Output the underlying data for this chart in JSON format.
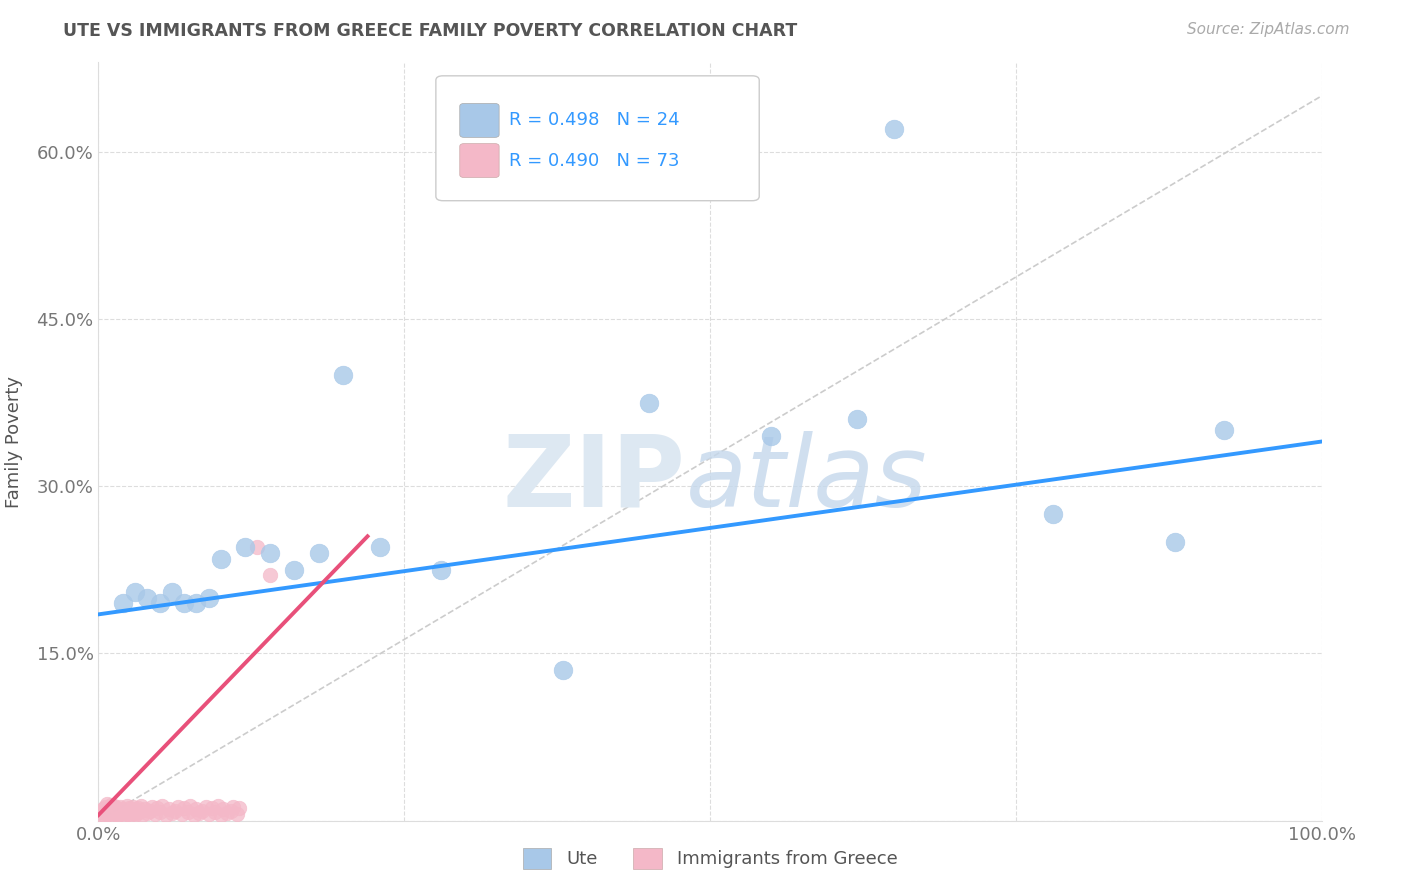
{
  "title": "UTE VS IMMIGRANTS FROM GREECE FAMILY POVERTY CORRELATION CHART",
  "source": "Source: ZipAtlas.com",
  "ylabel": "Family Poverty",
  "xlim": [
    0,
    1.0
  ],
  "ylim": [
    0,
    0.68
  ],
  "xticks": [
    0.0,
    0.25,
    0.5,
    0.75,
    1.0
  ],
  "xtick_labels": [
    "0.0%",
    "",
    "",
    "",
    "100.0%"
  ],
  "yticks": [
    0.0,
    0.15,
    0.3,
    0.45,
    0.6
  ],
  "ytick_labels": [
    "",
    "15.0%",
    "30.0%",
    "45.0%",
    "60.0%"
  ],
  "ute_R": "R = 0.498",
  "ute_N": "N = 24",
  "greece_R": "R = 0.490",
  "greece_N": "N = 73",
  "ute_color": "#a8c8e8",
  "greece_color": "#f4b8c8",
  "ute_line_color": "#3399ff",
  "greece_line_color": "#e8507a",
  "diagonal_color": "#cccccc",
  "background_color": "#ffffff",
  "ute_points_x": [
    0.02,
    0.03,
    0.04,
    0.05,
    0.06,
    0.07,
    0.08,
    0.09,
    0.1,
    0.12,
    0.14,
    0.16,
    0.18,
    0.2,
    0.23,
    0.28,
    0.38,
    0.45,
    0.55,
    0.62,
    0.65,
    0.78,
    0.88,
    0.92
  ],
  "ute_points_y": [
    0.195,
    0.205,
    0.2,
    0.195,
    0.205,
    0.195,
    0.195,
    0.2,
    0.235,
    0.245,
    0.24,
    0.225,
    0.24,
    0.4,
    0.245,
    0.225,
    0.135,
    0.375,
    0.345,
    0.36,
    0.62,
    0.275,
    0.25,
    0.35
  ],
  "greece_points_x": [
    0.002,
    0.003,
    0.004,
    0.005,
    0.005,
    0.006,
    0.007,
    0.007,
    0.008,
    0.009,
    0.01,
    0.01,
    0.011,
    0.012,
    0.013,
    0.013,
    0.014,
    0.015,
    0.016,
    0.017,
    0.018,
    0.019,
    0.02,
    0.021,
    0.022,
    0.023,
    0.024,
    0.025,
    0.026,
    0.027,
    0.028,
    0.029,
    0.03,
    0.031,
    0.032,
    0.033,
    0.035,
    0.036,
    0.038,
    0.04,
    0.042,
    0.044,
    0.046,
    0.048,
    0.05,
    0.052,
    0.055,
    0.058,
    0.06,
    0.063,
    0.065,
    0.068,
    0.07,
    0.073,
    0.075,
    0.078,
    0.08,
    0.082,
    0.085,
    0.088,
    0.09,
    0.093,
    0.095,
    0.098,
    0.1,
    0.102,
    0.105,
    0.108,
    0.11,
    0.113,
    0.115,
    0.13,
    0.14
  ],
  "greece_points_y": [
    0.005,
    0.008,
    0.01,
    0.004,
    0.012,
    0.007,
    0.009,
    0.015,
    0.006,
    0.011,
    0.008,
    0.014,
    0.005,
    0.01,
    0.007,
    0.013,
    0.006,
    0.011,
    0.005,
    0.009,
    0.012,
    0.007,
    0.01,
    0.005,
    0.008,
    0.013,
    0.006,
    0.011,
    0.005,
    0.009,
    0.012,
    0.007,
    0.01,
    0.006,
    0.011,
    0.008,
    0.013,
    0.005,
    0.01,
    0.007,
    0.009,
    0.012,
    0.006,
    0.011,
    0.008,
    0.013,
    0.005,
    0.01,
    0.007,
    0.009,
    0.012,
    0.006,
    0.011,
    0.008,
    0.013,
    0.005,
    0.01,
    0.007,
    0.009,
    0.012,
    0.006,
    0.011,
    0.008,
    0.013,
    0.005,
    0.01,
    0.007,
    0.009,
    0.012,
    0.006,
    0.011,
    0.245,
    0.22
  ],
  "ute_line_x": [
    0.0,
    1.0
  ],
  "ute_line_y": [
    0.185,
    0.34
  ],
  "greece_line_x": [
    0.0,
    0.22
  ],
  "greece_line_y": [
    0.005,
    0.255
  ]
}
